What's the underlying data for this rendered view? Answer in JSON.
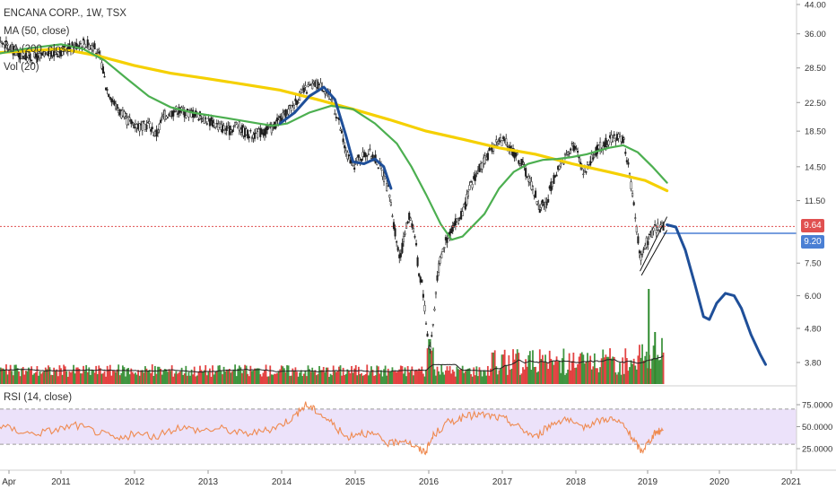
{
  "header": {
    "title": "ENCANA CORP., 1W, TSX",
    "indicator_ma50": "MA (50, close)",
    "indicator_ma200": "MA (200, close)",
    "indicator_vol": "Vol (20)",
    "indicator_rsi": "RSI (14, close)"
  },
  "price_tags": {
    "last_price": "9.64",
    "level_line": "9.20"
  },
  "colors": {
    "bull": "#2e8b2e",
    "bear": "#e03030",
    "ma50": "#4caf50",
    "ma200": "#f5d000",
    "projection": "#1f4f99",
    "level": "#4a7fd4",
    "last_price_line": "#e05050",
    "rsi_line": "#ef8a50",
    "rsi_band": "#ece2fa",
    "volume_ma": "#222222"
  },
  "chart_data": [
    {
      "type": "candlestick",
      "title": "ENCANA CORP., 1W, TSX",
      "x_ticks": [
        "Apr",
        "2011",
        "2012",
        "2013",
        "2014",
        "2015",
        "2016",
        "2017",
        "2018",
        "2019",
        "2020",
        "2021"
      ],
      "y_ticks": [
        "44.00",
        "36.00",
        "28.50",
        "22.50",
        "18.50",
        "14.50",
        "11.50",
        "9.20",
        "7.50",
        "6.00",
        "4.80",
        "3.80"
      ],
      "y_scale": "log",
      "price_path": [
        [
          2010.0,
          33.5
        ],
        [
          2010.2,
          34.0
        ],
        [
          2010.4,
          31.5
        ],
        [
          2010.6,
          30.5
        ],
        [
          2010.8,
          31.0
        ],
        [
          2011.0,
          32.0
        ],
        [
          2011.15,
          33.0
        ],
        [
          2011.3,
          34.0
        ],
        [
          2011.45,
          33.0
        ],
        [
          2011.55,
          30.0
        ],
        [
          2011.62,
          25.0
        ],
        [
          2011.75,
          22.0
        ],
        [
          2011.9,
          20.0
        ],
        [
          2012.0,
          19.5
        ],
        [
          2012.1,
          19.0
        ],
        [
          2012.2,
          19.5
        ],
        [
          2012.3,
          18.0
        ],
        [
          2012.4,
          20.5
        ],
        [
          2012.5,
          21.0
        ],
        [
          2012.6,
          21.5
        ],
        [
          2012.7,
          21.0
        ],
        [
          2012.8,
          21.0
        ],
        [
          2012.9,
          20.5
        ],
        [
          2013.0,
          20.0
        ],
        [
          2013.1,
          19.5
        ],
        [
          2013.2,
          19.0
        ],
        [
          2013.3,
          18.5
        ],
        [
          2013.4,
          19.5
        ],
        [
          2013.5,
          18.5
        ],
        [
          2013.6,
          18.0
        ],
        [
          2013.7,
          18.3
        ],
        [
          2013.8,
          18.5
        ],
        [
          2013.9,
          19.0
        ],
        [
          2014.0,
          20.0
        ],
        [
          2014.1,
          21.0
        ],
        [
          2014.2,
          22.5
        ],
        [
          2014.3,
          24.0
        ],
        [
          2014.4,
          25.0
        ],
        [
          2014.5,
          25.5
        ],
        [
          2014.6,
          25.0
        ],
        [
          2014.7,
          23.0
        ],
        [
          2014.8,
          20.0
        ],
        [
          2014.9,
          16.0
        ],
        [
          2015.0,
          14.5
        ],
        [
          2015.1,
          15.5
        ],
        [
          2015.2,
          16.0
        ],
        [
          2015.3,
          15.5
        ],
        [
          2015.4,
          14.0
        ],
        [
          2015.5,
          12.0
        ],
        [
          2015.6,
          8.5
        ],
        [
          2015.65,
          7.8
        ],
        [
          2015.72,
          9.5
        ],
        [
          2015.78,
          10.5
        ],
        [
          2015.85,
          9.0
        ],
        [
          2015.9,
          7.0
        ],
        [
          2015.95,
          6.5
        ],
        [
          2016.0,
          5.0
        ],
        [
          2016.05,
          4.1
        ],
        [
          2016.1,
          5.0
        ],
        [
          2016.15,
          6.8
        ],
        [
          2016.2,
          7.8
        ],
        [
          2016.25,
          8.5
        ],
        [
          2016.35,
          9.5
        ],
        [
          2016.5,
          10.5
        ],
        [
          2016.6,
          12.5
        ],
        [
          2016.7,
          14.0
        ],
        [
          2016.8,
          15.0
        ],
        [
          2016.9,
          16.5
        ],
        [
          2017.0,
          17.5
        ],
        [
          2017.1,
          17.0
        ],
        [
          2017.2,
          16.0
        ],
        [
          2017.3,
          15.0
        ],
        [
          2017.4,
          13.5
        ],
        [
          2017.5,
          12.0
        ],
        [
          2017.55,
          10.8
        ],
        [
          2017.6,
          11.5
        ],
        [
          2017.65,
          11.0
        ],
        [
          2017.7,
          12.5
        ],
        [
          2017.8,
          14.0
        ],
        [
          2017.9,
          15.5
        ],
        [
          2018.0,
          17.0
        ],
        [
          2018.1,
          15.5
        ],
        [
          2018.15,
          14.0
        ],
        [
          2018.25,
          15.0
        ],
        [
          2018.35,
          16.5
        ],
        [
          2018.45,
          17.0
        ],
        [
          2018.55,
          17.5
        ],
        [
          2018.65,
          18.0
        ],
        [
          2018.72,
          17.0
        ],
        [
          2018.78,
          14.0
        ],
        [
          2018.85,
          11.0
        ],
        [
          2018.9,
          9.0
        ],
        [
          2018.95,
          7.5
        ],
        [
          2019.0,
          8.5
        ],
        [
          2019.05,
          8.8
        ],
        [
          2019.1,
          9.3
        ],
        [
          2019.15,
          9.5
        ],
        [
          2019.2,
          9.7
        ],
        [
          2019.25,
          9.64
        ]
      ]
    },
    {
      "type": "line",
      "name": "MA (50, close)",
      "x": [
        2010.0,
        2010.5,
        2011.0,
        2011.3,
        2011.6,
        2011.9,
        2012.2,
        2012.5,
        2012.8,
        2013.1,
        2013.4,
        2013.7,
        2013.9,
        2014.1,
        2014.4,
        2014.7,
        2015.0,
        2015.3,
        2015.6,
        2015.8,
        2016.0,
        2016.2,
        2016.35,
        2016.5,
        2016.8,
        2017.0,
        2017.2,
        2017.4,
        2017.6,
        2017.8,
        2018.0,
        2018.2,
        2018.5,
        2018.7,
        2018.9,
        2019.1,
        2019.3
      ],
      "y": [
        31.0,
        32.5,
        33.5,
        32.5,
        30.0,
        26.5,
        23.5,
        21.8,
        21.0,
        20.5,
        20.0,
        19.5,
        19.2,
        19.5,
        21.0,
        22.0,
        21.5,
        19.5,
        17.0,
        14.5,
        12.0,
        9.8,
        8.8,
        9.0,
        10.5,
        12.5,
        14.0,
        14.8,
        15.2,
        15.3,
        15.5,
        15.8,
        16.5,
        16.8,
        16.0,
        14.5,
        13.0
      ]
    },
    {
      "type": "line",
      "name": "MA (200, close)",
      "x": [
        2010.0,
        2011.0,
        2011.5,
        2012.0,
        2012.5,
        2013.0,
        2013.5,
        2014.0,
        2014.5,
        2015.0,
        2015.5,
        2016.0,
        2016.5,
        2017.0,
        2017.5,
        2018.0,
        2018.5,
        2019.0,
        2019.3
      ],
      "y": [
        31.5,
        32.5,
        31.0,
        29.0,
        27.5,
        26.5,
        25.5,
        24.5,
        23.0,
        21.5,
        20.0,
        18.5,
        17.5,
        16.5,
        15.8,
        14.8,
        14.0,
        13.2,
        12.3
      ]
    },
    {
      "type": "line",
      "name": "projection",
      "x": [
        2014.0,
        2014.2,
        2014.4,
        2014.6,
        2014.75,
        2014.9,
        2015.0,
        2015.15,
        2015.3,
        2015.42,
        2015.52,
        2019.3,
        2019.42,
        2019.55,
        2019.68,
        2019.8,
        2019.88,
        2019.98,
        2020.1,
        2020.22,
        2020.32,
        2020.45,
        2020.58,
        2020.65
      ],
      "y": [
        19.5,
        21.0,
        23.5,
        25.0,
        23.0,
        18.0,
        15.0,
        14.8,
        15.3,
        14.5,
        12.5,
        9.75,
        9.6,
        8.2,
        6.5,
        5.2,
        5.1,
        5.7,
        6.1,
        6.0,
        5.5,
        4.6,
        4.0,
        3.75
      ]
    },
    {
      "type": "bar",
      "name": "Vol (20)",
      "values_relative": "weekly volume, relative scale",
      "spike": [
        2019.05,
        1.0
      ]
    },
    {
      "type": "line",
      "name": "RSI (14, close)",
      "y_ticks": [
        "75.0000",
        "50.0000",
        "25.0000"
      ],
      "band": [
        30,
        70
      ],
      "x": [
        2010.0,
        2010.3,
        2010.6,
        2010.9,
        2011.2,
        2011.5,
        2011.8,
        2012.0,
        2012.3,
        2012.6,
        2012.9,
        2013.2,
        2013.5,
        2013.8,
        2014.0,
        2014.2,
        2014.35,
        2014.5,
        2014.7,
        2014.9,
        2015.1,
        2015.3,
        2015.5,
        2015.7,
        2015.9,
        2016.0,
        2016.1,
        2016.3,
        2016.5,
        2016.7,
        2016.9,
        2017.1,
        2017.3,
        2017.5,
        2017.7,
        2017.9,
        2018.1,
        2018.3,
        2018.5,
        2018.7,
        2018.85,
        2018.95,
        2019.05,
        2019.15,
        2019.25
      ],
      "y": [
        55,
        48,
        42,
        46,
        52,
        44,
        35,
        42,
        38,
        50,
        46,
        48,
        42,
        45,
        52,
        62,
        75,
        68,
        55,
        38,
        44,
        40,
        30,
        36,
        24,
        22,
        40,
        55,
        60,
        64,
        62,
        58,
        48,
        38,
        52,
        60,
        48,
        55,
        60,
        52,
        34,
        22,
        33,
        44,
        46
      ]
    }
  ]
}
